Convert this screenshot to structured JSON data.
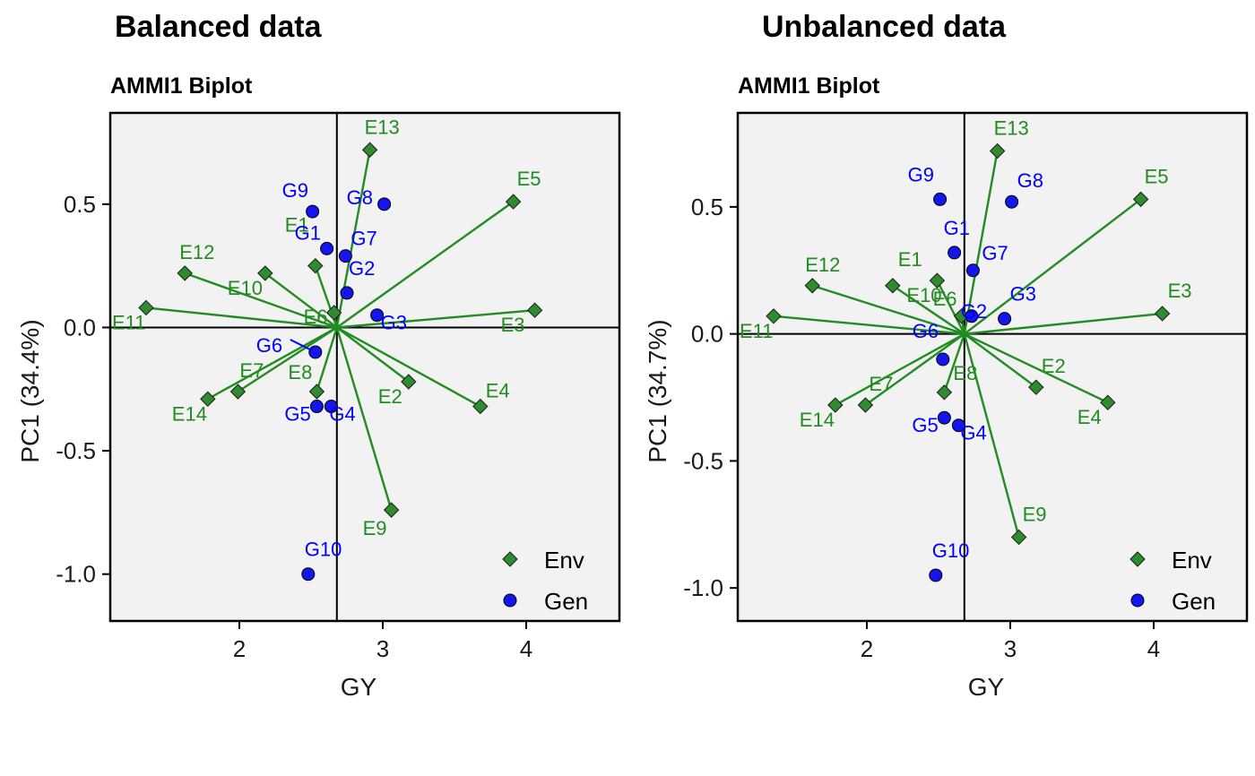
{
  "colors": {
    "env": "#228B22",
    "env_fill": "#2E8B2E",
    "gen": "#0000FF",
    "gen_fill": "#1515EE",
    "panel_bg": "#F2F2F2",
    "frame": "#000000"
  },
  "chart_data": [
    {
      "type": "scatter",
      "title": "Balanced data",
      "subtitle": "AMMI1 Biplot",
      "xlabel": "GY",
      "ylabel": "PC1 (34.4%)",
      "xlim": [
        1.1,
        4.65
      ],
      "ylim": [
        -1.19,
        0.87
      ],
      "xticks": [
        "2",
        "3",
        "4"
      ],
      "yticks": [
        "0.5",
        "0.0",
        "-0.5",
        "-1.0"
      ],
      "ref_lines": {
        "x": 2.68,
        "y": 0
      },
      "legend_position": "bottom-right",
      "legend": [
        {
          "label": "Env",
          "shape": "diamond"
        },
        {
          "label": "Gen",
          "shape": "circle"
        }
      ],
      "env": [
        {
          "label": "E1",
          "x": 2.53,
          "y": 0.25
        },
        {
          "label": "E2",
          "x": 3.18,
          "y": -0.22
        },
        {
          "label": "E3",
          "x": 4.06,
          "y": 0.07
        },
        {
          "label": "E4",
          "x": 3.68,
          "y": -0.32
        },
        {
          "label": "E5",
          "x": 3.91,
          "y": 0.51
        },
        {
          "label": "E6",
          "x": 2.66,
          "y": 0.06
        },
        {
          "label": "E7",
          "x": 1.99,
          "y": -0.26
        },
        {
          "label": "E8",
          "x": 2.54,
          "y": -0.26
        },
        {
          "label": "E9",
          "x": 3.06,
          "y": -0.74
        },
        {
          "label": "E10",
          "x": 2.18,
          "y": 0.22
        },
        {
          "label": "E11",
          "x": 1.35,
          "y": 0.08
        },
        {
          "label": "E12",
          "x": 1.62,
          "y": 0.22
        },
        {
          "label": "E13",
          "x": 2.91,
          "y": 0.72
        },
        {
          "label": "E14",
          "x": 1.78,
          "y": -0.29
        }
      ],
      "gen": [
        {
          "label": "G1",
          "x": 2.61,
          "y": 0.32
        },
        {
          "label": "G2",
          "x": 2.75,
          "y": 0.14
        },
        {
          "label": "G3",
          "x": 2.96,
          "y": 0.05
        },
        {
          "label": "G4",
          "x": 2.64,
          "y": -0.32
        },
        {
          "label": "G5",
          "x": 2.54,
          "y": -0.32
        },
        {
          "label": "G6",
          "x": 2.53,
          "y": -0.1
        },
        {
          "label": "G7",
          "x": 2.74,
          "y": 0.29
        },
        {
          "label": "G8",
          "x": 3.01,
          "y": 0.5
        },
        {
          "label": "G9",
          "x": 2.51,
          "y": 0.47
        },
        {
          "label": "G10",
          "x": 2.48,
          "y": -1.0
        }
      ]
    },
    {
      "type": "scatter",
      "title": "Unbalanced data",
      "subtitle": "AMMI1 Biplot",
      "xlabel": "GY",
      "ylabel": "PC1 (34.7%)",
      "xlim": [
        1.1,
        4.65
      ],
      "ylim": [
        -1.13,
        0.87
      ],
      "xticks": [
        "2",
        "3",
        "4"
      ],
      "yticks": [
        "0.5",
        "0.0",
        "-0.5",
        "-1.0"
      ],
      "ref_lines": {
        "x": 2.68,
        "y": 0
      },
      "legend_position": "bottom-right",
      "legend": [
        {
          "label": "Env",
          "shape": "diamond"
        },
        {
          "label": "Gen",
          "shape": "circle"
        }
      ],
      "env": [
        {
          "label": "E1",
          "x": 2.18,
          "y": 0.19
        },
        {
          "label": "E2",
          "x": 3.18,
          "y": -0.21
        },
        {
          "label": "E3",
          "x": 4.06,
          "y": 0.08
        },
        {
          "label": "E4",
          "x": 3.68,
          "y": -0.27
        },
        {
          "label": "E5",
          "x": 3.91,
          "y": 0.53
        },
        {
          "label": "E6",
          "x": 2.66,
          "y": 0.07
        },
        {
          "label": "E7",
          "x": 1.99,
          "y": -0.28
        },
        {
          "label": "E8",
          "x": 2.54,
          "y": -0.23
        },
        {
          "label": "E9",
          "x": 3.06,
          "y": -0.8
        },
        {
          "label": "E10",
          "x": 2.49,
          "y": 0.21
        },
        {
          "label": "E11",
          "x": 1.35,
          "y": 0.07
        },
        {
          "label": "E12",
          "x": 1.62,
          "y": 0.19
        },
        {
          "label": "E13",
          "x": 2.91,
          "y": 0.72
        },
        {
          "label": "E14",
          "x": 1.78,
          "y": -0.28
        }
      ],
      "gen": [
        {
          "label": "G1",
          "x": 2.61,
          "y": 0.32
        },
        {
          "label": "G2",
          "x": 2.73,
          "y": 0.07
        },
        {
          "label": "G3",
          "x": 2.96,
          "y": 0.06
        },
        {
          "label": "G4",
          "x": 2.64,
          "y": -0.36
        },
        {
          "label": "G5",
          "x": 2.54,
          "y": -0.33
        },
        {
          "label": "G6",
          "x": 2.53,
          "y": -0.1
        },
        {
          "label": "G7",
          "x": 2.74,
          "y": 0.25
        },
        {
          "label": "G8",
          "x": 3.01,
          "y": 0.52
        },
        {
          "label": "G9",
          "x": 2.51,
          "y": 0.53
        },
        {
          "label": "G10",
          "x": 2.48,
          "y": -0.95
        }
      ]
    }
  ]
}
